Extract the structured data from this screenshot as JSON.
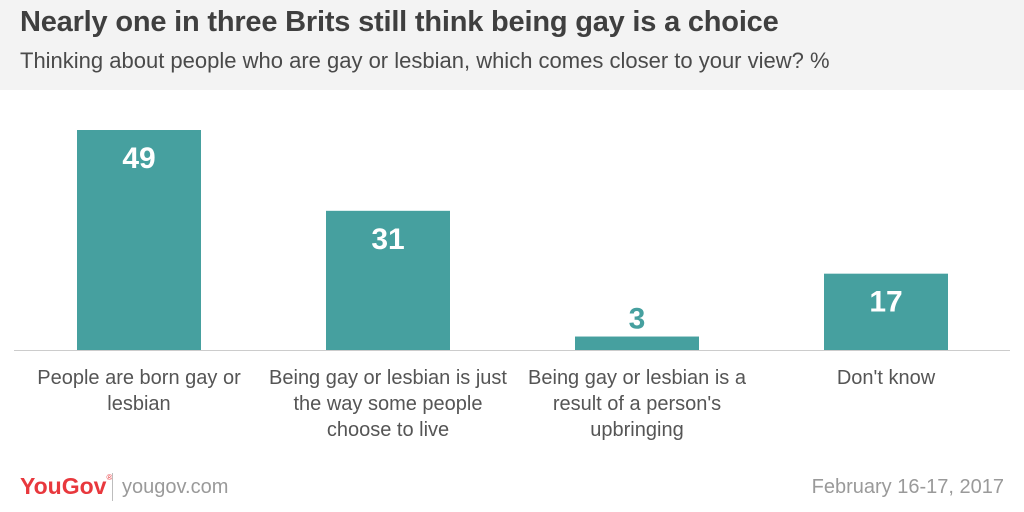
{
  "title": "Nearly one in three Brits still think being gay is a choice",
  "subtitle": "Thinking about people who are gay or lesbian, which comes closer to your view? %",
  "chart_data": {
    "type": "bar",
    "title": "Nearly one in three Brits still think being gay is a choice",
    "subtitle": "Thinking about people who are gay or lesbian, which comes closer to your view? %",
    "categories": [
      "People are born gay or lesbian",
      "Being gay or lesbian is just the way some people choose to live",
      "Being gay or lesbian is a result of a person's upbringing",
      "Don't know"
    ],
    "values": [
      49,
      31,
      3,
      17
    ],
    "xlabel": "",
    "ylabel": "",
    "ylim": [
      0,
      50
    ],
    "grid": false,
    "legend": "none",
    "data_labels": true,
    "bar_color": "#46a09f",
    "label_color_inside": "#ffffff",
    "label_color_outside": "#46a09f"
  },
  "footer": {
    "logo": "YouGov",
    "logo_mark": "®",
    "site": "yougov.com",
    "date": "February 16-17, 2017"
  },
  "colors": {
    "header_bg": "#f3f3f3",
    "title": "#3f3f3f",
    "brand": "#e8383d",
    "muted": "#9a9a9a"
  }
}
